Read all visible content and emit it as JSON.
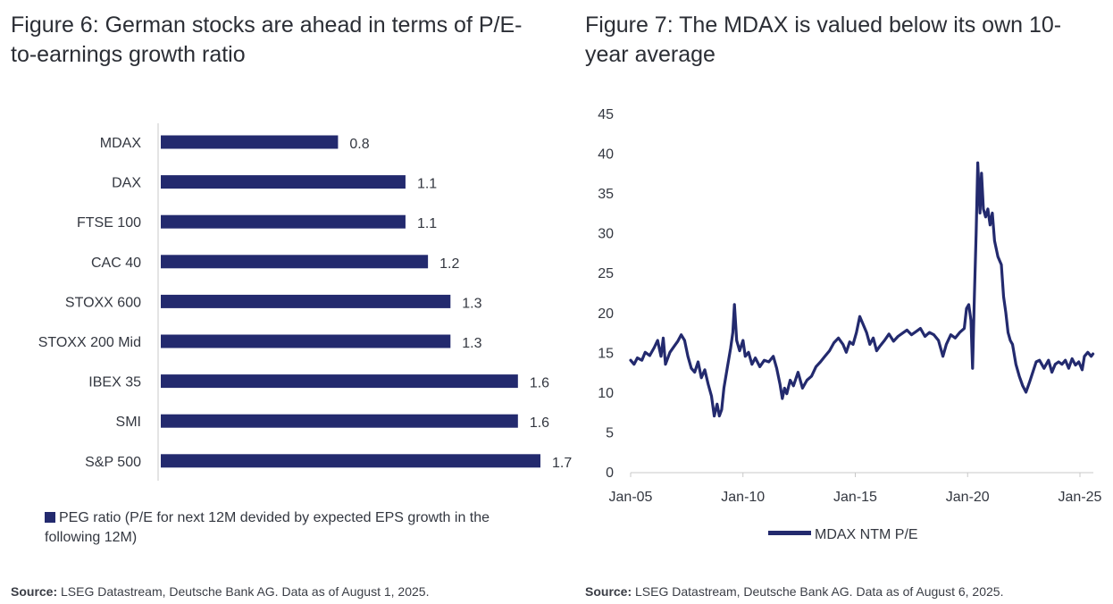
{
  "figure6": {
    "title": "Figure 6: German stocks are ahead in terms of P/E-to-earnings growth ratio",
    "legend": "PEG ratio (P/E for next 12M devided by expected EPS growth in the following 12M)",
    "source_label": "Source:",
    "source_text": " LSEG Datastream, Deutsche Bank AG. Data as of August 1, 2025."
  },
  "figure7": {
    "title": "Figure 7: The MDAX is valued below its own 10-year average",
    "legend": "MDAX NTM P/E",
    "source_label": "Source:",
    "source_text": " LSEG Datastream, Deutsche Bank AG. Data as of August 6, 2025."
  },
  "colors": {
    "series": "#232a6e",
    "axis": "#c8c8c8",
    "text": "#333740"
  },
  "chart_data": [
    {
      "type": "bar",
      "orientation": "horizontal",
      "title": "Figure 6: German stocks are ahead in terms of P/E-to-earnings growth ratio",
      "categories": [
        "MDAX",
        "DAX",
        "FTSE 100",
        "CAC 40",
        "STOXX 600",
        "STOXX 200 Mid",
        "IBEX 35",
        "SMI",
        "S&P 500"
      ],
      "values": [
        0.8,
        1.1,
        1.1,
        1.2,
        1.3,
        1.3,
        1.6,
        1.6,
        1.7
      ],
      "value_labels": [
        "0.8",
        "1.1",
        "1.1",
        "1.2",
        "1.3",
        "1.3",
        "1.6",
        "1.6",
        "1.7"
      ],
      "series_name": "PEG ratio (P/E for next 12M devided by expected EPS growth in the following 12M)",
      "xlim": [
        0,
        2.0
      ],
      "legend_position": "bottom-left"
    },
    {
      "type": "line",
      "title": "Figure 7: The MDAX is valued below its own 10-year average",
      "series_name": "MDAX NTM P/E",
      "ylim": [
        0,
        45
      ],
      "yticks": [
        0,
        5,
        10,
        15,
        20,
        25,
        30,
        35,
        40,
        45
      ],
      "xlim": [
        2005.0,
        2025.6
      ],
      "xticks": [
        {
          "value": 2005,
          "label": "Jan-05"
        },
        {
          "value": 2010,
          "label": "Jan-10"
        },
        {
          "value": 2015,
          "label": "Jan-15"
        },
        {
          "value": 2020,
          "label": "Jan-20"
        },
        {
          "value": 2025,
          "label": "Jan-25"
        }
      ],
      "points": [
        [
          2005.0,
          14.0
        ],
        [
          2005.15,
          13.5
        ],
        [
          2005.3,
          14.3
        ],
        [
          2005.5,
          14.0
        ],
        [
          2005.65,
          15.0
        ],
        [
          2005.85,
          14.6
        ],
        [
          2006.05,
          15.6
        ],
        [
          2006.2,
          16.5
        ],
        [
          2006.35,
          14.5
        ],
        [
          2006.45,
          16.8
        ],
        [
          2006.55,
          13.5
        ],
        [
          2006.75,
          15.0
        ],
        [
          2006.95,
          15.8
        ],
        [
          2007.1,
          16.4
        ],
        [
          2007.25,
          17.2
        ],
        [
          2007.4,
          16.5
        ],
        [
          2007.55,
          14.5
        ],
        [
          2007.7,
          13.0
        ],
        [
          2007.85,
          12.5
        ],
        [
          2008.0,
          13.8
        ],
        [
          2008.15,
          11.8
        ],
        [
          2008.3,
          12.8
        ],
        [
          2008.45,
          11.0
        ],
        [
          2008.6,
          9.5
        ],
        [
          2008.72,
          7.0
        ],
        [
          2008.85,
          8.5
        ],
        [
          2008.95,
          7.0
        ],
        [
          2009.05,
          7.8
        ],
        [
          2009.15,
          10.5
        ],
        [
          2009.3,
          13.0
        ],
        [
          2009.45,
          15.5
        ],
        [
          2009.55,
          17.5
        ],
        [
          2009.62,
          21.0
        ],
        [
          2009.72,
          16.5
        ],
        [
          2009.85,
          15.2
        ],
        [
          2010.0,
          16.5
        ],
        [
          2010.1,
          14.5
        ],
        [
          2010.25,
          15.0
        ],
        [
          2010.4,
          13.5
        ],
        [
          2010.55,
          14.3
        ],
        [
          2010.75,
          13.2
        ],
        [
          2010.95,
          14.0
        ],
        [
          2011.15,
          13.8
        ],
        [
          2011.35,
          14.5
        ],
        [
          2011.5,
          13.0
        ],
        [
          2011.65,
          11.0
        ],
        [
          2011.75,
          9.2
        ],
        [
          2011.85,
          10.5
        ],
        [
          2011.95,
          9.8
        ],
        [
          2012.1,
          11.5
        ],
        [
          2012.25,
          10.8
        ],
        [
          2012.45,
          12.5
        ],
        [
          2012.65,
          10.5
        ],
        [
          2012.85,
          11.5
        ],
        [
          2013.05,
          12.0
        ],
        [
          2013.25,
          13.2
        ],
        [
          2013.45,
          13.8
        ],
        [
          2013.65,
          14.5
        ],
        [
          2013.85,
          15.2
        ],
        [
          2014.05,
          16.2
        ],
        [
          2014.25,
          16.8
        ],
        [
          2014.45,
          16.0
        ],
        [
          2014.6,
          15.0
        ],
        [
          2014.75,
          16.3
        ],
        [
          2014.9,
          16.0
        ],
        [
          2015.05,
          17.5
        ],
        [
          2015.2,
          19.5
        ],
        [
          2015.35,
          18.5
        ],
        [
          2015.5,
          17.5
        ],
        [
          2015.65,
          16.0
        ],
        [
          2015.8,
          16.8
        ],
        [
          2015.95,
          15.2
        ],
        [
          2016.1,
          15.8
        ],
        [
          2016.3,
          16.5
        ],
        [
          2016.5,
          17.3
        ],
        [
          2016.7,
          16.4
        ],
        [
          2016.9,
          17.0
        ],
        [
          2017.1,
          17.4
        ],
        [
          2017.3,
          17.8
        ],
        [
          2017.5,
          17.2
        ],
        [
          2017.7,
          17.6
        ],
        [
          2017.9,
          18.0
        ],
        [
          2018.1,
          17.0
        ],
        [
          2018.3,
          17.5
        ],
        [
          2018.5,
          17.2
        ],
        [
          2018.7,
          16.5
        ],
        [
          2018.9,
          14.5
        ],
        [
          2019.05,
          16.0
        ],
        [
          2019.25,
          17.2
        ],
        [
          2019.45,
          16.8
        ],
        [
          2019.65,
          17.5
        ],
        [
          2019.85,
          18.0
        ],
        [
          2019.95,
          20.5
        ],
        [
          2020.05,
          21.0
        ],
        [
          2020.15,
          19.0
        ],
        [
          2020.22,
          13.0
        ],
        [
          2020.3,
          22.0
        ],
        [
          2020.38,
          30.0
        ],
        [
          2020.45,
          38.8
        ],
        [
          2020.55,
          32.5
        ],
        [
          2020.62,
          37.5
        ],
        [
          2020.7,
          33.0
        ],
        [
          2020.8,
          32.0
        ],
        [
          2020.9,
          33.0
        ],
        [
          2021.0,
          31.0
        ],
        [
          2021.1,
          32.5
        ],
        [
          2021.2,
          29.0
        ],
        [
          2021.35,
          27.0
        ],
        [
          2021.5,
          26.0
        ],
        [
          2021.6,
          22.0
        ],
        [
          2021.7,
          20.0
        ],
        [
          2021.8,
          17.5
        ],
        [
          2021.9,
          16.5
        ],
        [
          2022.0,
          16.0
        ],
        [
          2022.15,
          13.5
        ],
        [
          2022.3,
          12.0
        ],
        [
          2022.45,
          10.8
        ],
        [
          2022.6,
          10.0
        ],
        [
          2022.75,
          11.2
        ],
        [
          2022.9,
          12.5
        ],
        [
          2023.05,
          13.8
        ],
        [
          2023.2,
          14.0
        ],
        [
          2023.4,
          13.0
        ],
        [
          2023.6,
          14.0
        ],
        [
          2023.75,
          12.5
        ],
        [
          2023.9,
          13.5
        ],
        [
          2024.05,
          13.8
        ],
        [
          2024.2,
          13.5
        ],
        [
          2024.35,
          14.0
        ],
        [
          2024.5,
          13.0
        ],
        [
          2024.65,
          14.2
        ],
        [
          2024.8,
          13.4
        ],
        [
          2024.95,
          13.8
        ],
        [
          2025.1,
          12.8
        ],
        [
          2025.2,
          14.5
        ],
        [
          2025.35,
          15.0
        ],
        [
          2025.5,
          14.5
        ],
        [
          2025.58,
          14.8
        ]
      ],
      "legend_position": "bottom-center"
    }
  ]
}
